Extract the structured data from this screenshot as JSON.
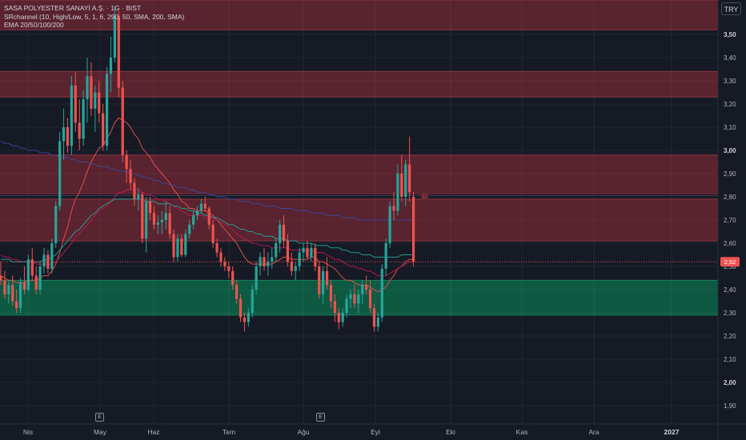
{
  "legend": {
    "title": "SASA POLYESTER SANAYİ A.Ş. · 1G · BIST",
    "indicator1": "SRchannel (10, High/Low, 5, 1, 6, 290, 50, SMA, 200, SMA)",
    "indicator2": "EMA 20/50/100/200"
  },
  "currency": "TRY",
  "event_markers": [
    "E",
    "E"
  ],
  "current_price_label": "2,52",
  "level_marker": "D",
  "chart_data": {
    "type": "candlestick",
    "title": "SASA POLYESTER SANAYİ A.Ş. · 1G · BIST",
    "xlabel": "",
    "ylabel": "",
    "x_ticks": [
      {
        "label": "Nis",
        "bold": false
      },
      {
        "label": "May",
        "bold": false
      },
      {
        "label": "Haz",
        "bold": false
      },
      {
        "label": "Tem",
        "bold": false
      },
      {
        "label": "Ağu",
        "bold": false
      },
      {
        "label": "Eyl",
        "bold": false
      },
      {
        "label": "Eki",
        "bold": false
      },
      {
        "label": "Kas",
        "bold": false
      },
      {
        "label": "Ara",
        "bold": false
      },
      {
        "label": "2027",
        "bold": true
      }
    ],
    "y_ticks": [
      {
        "value": 3.5,
        "label": "3,50",
        "bold": true
      },
      {
        "value": 3.4,
        "label": "3,40",
        "bold": false
      },
      {
        "value": 3.3,
        "label": "3,30",
        "bold": false
      },
      {
        "value": 3.2,
        "label": "3,20",
        "bold": false
      },
      {
        "value": 3.1,
        "label": "3,10",
        "bold": false
      },
      {
        "value": 3.0,
        "label": "3,00",
        "bold": true
      },
      {
        "value": 2.9,
        "label": "2,90",
        "bold": false
      },
      {
        "value": 2.8,
        "label": "2,80",
        "bold": false
      },
      {
        "value": 2.7,
        "label": "2,70",
        "bold": false
      },
      {
        "value": 2.6,
        "label": "2,60",
        "bold": false
      },
      {
        "value": 2.5,
        "label": "2,50",
        "bold": false
      },
      {
        "value": 2.4,
        "label": "2,40",
        "bold": false
      },
      {
        "value": 2.3,
        "label": "2,30",
        "bold": false
      },
      {
        "value": 2.2,
        "label": "2,20",
        "bold": false
      },
      {
        "value": 2.1,
        "label": "2,10",
        "bold": false
      },
      {
        "value": 2.0,
        "label": "2,00",
        "bold": true
      },
      {
        "value": 1.9,
        "label": "1,90",
        "bold": false
      }
    ],
    "ylim": [
      1.86,
      3.62
    ],
    "grid": true,
    "current_price": 2.52,
    "horizontal_level": 2.805,
    "zones": [
      {
        "low": 3.52,
        "high": 3.65,
        "kind": "resistance"
      },
      {
        "low": 3.23,
        "high": 3.34,
        "kind": "resistance"
      },
      {
        "low": 2.81,
        "high": 2.98,
        "kind": "resistance"
      },
      {
        "low": 2.61,
        "high": 2.79,
        "kind": "resistance"
      },
      {
        "low": 2.29,
        "high": 2.44,
        "kind": "support"
      }
    ],
    "candles": [
      [
        2.46,
        2.52,
        2.42,
        2.44
      ],
      [
        2.44,
        2.48,
        2.36,
        2.38
      ],
      [
        2.38,
        2.44,
        2.34,
        2.42
      ],
      [
        2.42,
        2.46,
        2.33,
        2.35
      ],
      [
        2.35,
        2.4,
        2.3,
        2.32
      ],
      [
        2.32,
        2.45,
        2.3,
        2.43
      ],
      [
        2.43,
        2.5,
        2.38,
        2.4
      ],
      [
        2.4,
        2.55,
        2.39,
        2.53
      ],
      [
        2.53,
        2.58,
        2.44,
        2.46
      ],
      [
        2.46,
        2.5,
        2.38,
        2.4
      ],
      [
        2.4,
        2.52,
        2.38,
        2.5
      ],
      [
        2.5,
        2.58,
        2.47,
        2.55
      ],
      [
        2.55,
        2.57,
        2.47,
        2.49
      ],
      [
        2.49,
        2.62,
        2.47,
        2.6
      ],
      [
        2.6,
        2.78,
        2.58,
        2.76
      ],
      [
        2.76,
        3.08,
        2.74,
        3.04
      ],
      [
        3.04,
        3.18,
        2.96,
        3.1
      ],
      [
        3.1,
        3.14,
        2.99,
        3.02
      ],
      [
        3.02,
        3.32,
        2.98,
        3.28
      ],
      [
        3.28,
        3.34,
        3.08,
        3.12
      ],
      [
        3.12,
        3.22,
        3.0,
        3.05
      ],
      [
        3.05,
        3.26,
        3.02,
        3.22
      ],
      [
        3.22,
        3.4,
        3.12,
        3.32
      ],
      [
        3.32,
        3.38,
        3.15,
        3.18
      ],
      [
        3.18,
        3.28,
        3.08,
        3.25
      ],
      [
        3.25,
        3.3,
        3.12,
        3.16
      ],
      [
        3.16,
        3.2,
        3.0,
        3.02
      ],
      [
        3.02,
        3.36,
        3.0,
        3.33
      ],
      [
        3.33,
        3.49,
        3.25,
        3.4
      ],
      [
        3.4,
        3.62,
        3.38,
        3.58
      ],
      [
        3.58,
        3.6,
        3.23,
        3.27
      ],
      [
        3.27,
        3.3,
        2.95,
        2.98
      ],
      [
        2.98,
        3.0,
        2.86,
        2.92
      ],
      [
        2.92,
        2.96,
        2.83,
        2.86
      ],
      [
        2.86,
        2.88,
        2.76,
        2.79
      ],
      [
        2.79,
        2.84,
        2.74,
        2.81
      ],
      [
        2.81,
        2.82,
        2.6,
        2.62
      ],
      [
        2.62,
        2.8,
        2.56,
        2.78
      ],
      [
        2.78,
        2.8,
        2.7,
        2.73
      ],
      [
        2.73,
        2.76,
        2.66,
        2.68
      ],
      [
        2.68,
        2.72,
        2.64,
        2.69
      ],
      [
        2.69,
        2.74,
        2.64,
        2.7
      ],
      [
        2.7,
        2.78,
        2.66,
        2.73
      ],
      [
        2.73,
        2.76,
        2.62,
        2.64
      ],
      [
        2.64,
        2.66,
        2.52,
        2.54
      ],
      [
        2.54,
        2.64,
        2.52,
        2.62
      ],
      [
        2.62,
        2.64,
        2.54,
        2.55
      ],
      [
        2.55,
        2.66,
        2.54,
        2.64
      ],
      [
        2.64,
        2.7,
        2.62,
        2.68
      ],
      [
        2.68,
        2.74,
        2.66,
        2.72
      ],
      [
        2.72,
        2.76,
        2.7,
        2.74
      ],
      [
        2.74,
        2.79,
        2.73,
        2.77
      ],
      [
        2.77,
        2.8,
        2.74,
        2.75
      ],
      [
        2.75,
        2.76,
        2.66,
        2.68
      ],
      [
        2.68,
        2.7,
        2.58,
        2.6
      ],
      [
        2.6,
        2.62,
        2.54,
        2.56
      ],
      [
        2.56,
        2.58,
        2.5,
        2.52
      ],
      [
        2.52,
        2.54,
        2.48,
        2.5
      ],
      [
        2.5,
        2.52,
        2.45,
        2.48
      ],
      [
        2.48,
        2.5,
        2.4,
        2.42
      ],
      [
        2.42,
        2.44,
        2.34,
        2.36
      ],
      [
        2.36,
        2.38,
        2.26,
        2.28
      ],
      [
        2.28,
        2.3,
        2.22,
        2.26
      ],
      [
        2.26,
        2.32,
        2.24,
        2.3
      ],
      [
        2.3,
        2.42,
        2.28,
        2.4
      ],
      [
        2.4,
        2.52,
        2.38,
        2.5
      ],
      [
        2.5,
        2.56,
        2.46,
        2.54
      ],
      [
        2.54,
        2.58,
        2.48,
        2.5
      ],
      [
        2.5,
        2.56,
        2.46,
        2.52
      ],
      [
        2.52,
        2.58,
        2.49,
        2.54
      ],
      [
        2.54,
        2.62,
        2.52,
        2.6
      ],
      [
        2.6,
        2.7,
        2.56,
        2.68
      ],
      [
        2.68,
        2.72,
        2.58,
        2.61
      ],
      [
        2.61,
        2.64,
        2.5,
        2.52
      ],
      [
        2.52,
        2.56,
        2.46,
        2.48
      ],
      [
        2.48,
        2.52,
        2.44,
        2.5
      ],
      [
        2.5,
        2.58,
        2.48,
        2.56
      ],
      [
        2.56,
        2.6,
        2.52,
        2.58
      ],
      [
        2.58,
        2.61,
        2.53,
        2.54
      ],
      [
        2.54,
        2.6,
        2.52,
        2.58
      ],
      [
        2.58,
        2.6,
        2.48,
        2.5
      ],
      [
        2.5,
        2.52,
        2.36,
        2.38
      ],
      [
        2.38,
        2.5,
        2.34,
        2.48
      ],
      [
        2.48,
        2.54,
        2.4,
        2.42
      ],
      [
        2.42,
        2.44,
        2.32,
        2.35
      ],
      [
        2.35,
        2.38,
        2.26,
        2.3
      ],
      [
        2.3,
        2.32,
        2.23,
        2.26
      ],
      [
        2.26,
        2.32,
        2.24,
        2.3
      ],
      [
        2.3,
        2.38,
        2.28,
        2.36
      ],
      [
        2.36,
        2.4,
        2.32,
        2.38
      ],
      [
        2.38,
        2.42,
        2.32,
        2.34
      ],
      [
        2.34,
        2.4,
        2.3,
        2.38
      ],
      [
        2.38,
        2.44,
        2.34,
        2.42
      ],
      [
        2.42,
        2.46,
        2.38,
        2.4
      ],
      [
        2.4,
        2.44,
        2.3,
        2.32
      ],
      [
        2.32,
        2.34,
        2.22,
        2.24
      ],
      [
        2.24,
        2.3,
        2.22,
        2.28
      ],
      [
        2.28,
        2.51,
        2.26,
        2.49
      ],
      [
        2.49,
        2.62,
        2.46,
        2.6
      ],
      [
        2.6,
        2.78,
        2.58,
        2.76
      ],
      [
        2.76,
        2.82,
        2.7,
        2.74
      ],
      [
        2.74,
        2.94,
        2.72,
        2.9
      ],
      [
        2.9,
        2.98,
        2.78,
        2.8
      ],
      [
        2.8,
        2.96,
        2.76,
        2.94
      ],
      [
        2.94,
        3.06,
        2.78,
        2.82
      ],
      [
        2.8,
        2.82,
        2.5,
        2.52
      ]
    ],
    "series": [
      {
        "name": "EMA 20",
        "color": "#ef5350",
        "values": [
          2.46,
          2.45,
          2.44,
          2.44,
          2.43,
          2.43,
          2.43,
          2.44,
          2.44,
          2.44,
          2.45,
          2.46,
          2.46,
          2.48,
          2.51,
          2.56,
          2.62,
          2.67,
          2.74,
          2.79,
          2.82,
          2.86,
          2.91,
          2.95,
          2.98,
          3.01,
          3.02,
          3.05,
          3.08,
          3.12,
          3.14,
          3.13,
          3.12,
          3.1,
          3.07,
          3.05,
          3.01,
          2.99,
          2.97,
          2.94,
          2.92,
          2.9,
          2.88,
          2.86,
          2.83,
          2.81,
          2.78,
          2.77,
          2.75,
          2.75,
          2.74,
          2.74,
          2.74,
          2.73,
          2.72,
          2.7,
          2.68,
          2.66,
          2.64,
          2.62,
          2.6,
          2.57,
          2.54,
          2.52,
          2.51,
          2.51,
          2.51,
          2.51,
          2.51,
          2.51,
          2.52,
          2.53,
          2.54,
          2.54,
          2.53,
          2.53,
          2.53,
          2.53,
          2.53,
          2.54,
          2.54,
          2.52,
          2.52,
          2.51,
          2.5,
          2.49,
          2.47,
          2.45,
          2.44,
          2.44,
          2.43,
          2.42,
          2.42,
          2.42,
          2.41,
          2.4,
          2.39,
          2.4,
          2.41,
          2.44,
          2.46,
          2.49,
          2.5,
          2.52,
          2.53,
          2.53
        ]
      },
      {
        "name": "EMA 50",
        "color": "#c2185b",
        "values": [
          2.55,
          2.54,
          2.54,
          2.53,
          2.53,
          2.52,
          2.52,
          2.52,
          2.52,
          2.51,
          2.51,
          2.51,
          2.51,
          2.51,
          2.52,
          2.54,
          2.56,
          2.58,
          2.6,
          2.63,
          2.64,
          2.66,
          2.68,
          2.7,
          2.72,
          2.74,
          2.75,
          2.76,
          2.78,
          2.8,
          2.82,
          2.82,
          2.83,
          2.83,
          2.83,
          2.83,
          2.82,
          2.81,
          2.81,
          2.8,
          2.79,
          2.79,
          2.78,
          2.77,
          2.76,
          2.75,
          2.74,
          2.73,
          2.72,
          2.72,
          2.72,
          2.72,
          2.71,
          2.71,
          2.71,
          2.7,
          2.69,
          2.68,
          2.67,
          2.66,
          2.64,
          2.63,
          2.62,
          2.61,
          2.6,
          2.6,
          2.59,
          2.59,
          2.59,
          2.58,
          2.58,
          2.58,
          2.58,
          2.58,
          2.57,
          2.57,
          2.57,
          2.57,
          2.57,
          2.57,
          2.56,
          2.56,
          2.56,
          2.55,
          2.54,
          2.53,
          2.53,
          2.52,
          2.51,
          2.5,
          2.5,
          2.49,
          2.49,
          2.48,
          2.48,
          2.47,
          2.46,
          2.46,
          2.46,
          2.47,
          2.48,
          2.49,
          2.5,
          2.51,
          2.52,
          2.52
        ]
      },
      {
        "name": "EMA 100",
        "color": "#26a69a",
        "values": [
          2.53,
          2.53,
          2.53,
          2.52,
          2.52,
          2.52,
          2.52,
          2.52,
          2.52,
          2.52,
          2.52,
          2.53,
          2.53,
          2.54,
          2.55,
          2.57,
          2.59,
          2.61,
          2.63,
          2.65,
          2.66,
          2.68,
          2.7,
          2.72,
          2.73,
          2.75,
          2.76,
          2.77,
          2.78,
          2.79,
          2.79,
          2.79,
          2.79,
          2.79,
          2.79,
          2.79,
          2.79,
          2.78,
          2.78,
          2.78,
          2.77,
          2.77,
          2.77,
          2.77,
          2.76,
          2.76,
          2.75,
          2.75,
          2.74,
          2.74,
          2.73,
          2.73,
          2.72,
          2.72,
          2.71,
          2.71,
          2.7,
          2.69,
          2.68,
          2.68,
          2.67,
          2.66,
          2.66,
          2.65,
          2.65,
          2.64,
          2.64,
          2.63,
          2.63,
          2.63,
          2.62,
          2.62,
          2.62,
          2.61,
          2.61,
          2.61,
          2.6,
          2.6,
          2.6,
          2.6,
          2.59,
          2.59,
          2.59,
          2.59,
          2.58,
          2.58,
          2.58,
          2.57,
          2.57,
          2.56,
          2.56,
          2.56,
          2.55,
          2.55,
          2.55,
          2.54,
          2.54,
          2.54,
          2.54,
          2.54,
          2.54,
          2.54,
          2.55,
          2.55,
          2.55,
          2.55
        ]
      },
      {
        "name": "EMA 200",
        "color": "#3d4a9e",
        "values": [
          3.04,
          3.03,
          3.03,
          3.02,
          3.02,
          3.01,
          3.01,
          3.0,
          3.0,
          3.0,
          2.99,
          2.99,
          2.99,
          2.98,
          2.98,
          2.97,
          2.97,
          2.97,
          2.96,
          2.96,
          2.95,
          2.95,
          2.95,
          2.94,
          2.94,
          2.93,
          2.93,
          2.93,
          2.92,
          2.92,
          2.91,
          2.91,
          2.91,
          2.9,
          2.9,
          2.89,
          2.89,
          2.88,
          2.88,
          2.87,
          2.87,
          2.86,
          2.86,
          2.85,
          2.85,
          2.84,
          2.84,
          2.84,
          2.83,
          2.83,
          2.82,
          2.82,
          2.82,
          2.81,
          2.81,
          2.8,
          2.8,
          2.8,
          2.79,
          2.79,
          2.79,
          2.78,
          2.78,
          2.78,
          2.77,
          2.77,
          2.77,
          2.76,
          2.76,
          2.76,
          2.76,
          2.75,
          2.75,
          2.75,
          2.75,
          2.74,
          2.74,
          2.74,
          2.74,
          2.73,
          2.73,
          2.73,
          2.73,
          2.72,
          2.72,
          2.72,
          2.72,
          2.71,
          2.71,
          2.71,
          2.71,
          2.7,
          2.7,
          2.7,
          2.7,
          2.7,
          2.7,
          2.7,
          2.7,
          2.7,
          2.7,
          2.7,
          2.7,
          2.7,
          2.7,
          2.7
        ]
      }
    ]
  }
}
